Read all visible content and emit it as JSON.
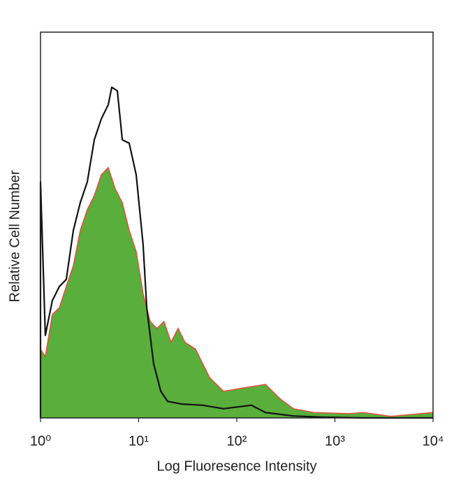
{
  "chart_data": {
    "type": "histogram-overlay",
    "x_label": "Log Fluoresence Intensity",
    "y_label": "Relative Cell Number",
    "xscale": "log",
    "xlim": [
      1,
      10000
    ],
    "xticks": [
      {
        "value": 1,
        "label": "10⁰"
      },
      {
        "value": 10,
        "label": "10¹"
      },
      {
        "value": 100,
        "label": "10²"
      },
      {
        "value": 1000,
        "label": "10³"
      },
      {
        "value": 10000,
        "label": "10⁴"
      }
    ],
    "ylim": [
      0,
      100
    ],
    "series": [
      {
        "style": "filled",
        "color": "#5aae3c",
        "edge_color": "#e0503c",
        "x": [
          1,
          1.12,
          1.32,
          1.56,
          1.83,
          2.16,
          2.54,
          3.0,
          3.53,
          4.16,
          4.9,
          5.77,
          6.81,
          8.02,
          9.44,
          11.1,
          13.1,
          15.4,
          18.1,
          21.4,
          25.2,
          29.7,
          38.0,
          52.7,
          73.3,
          119,
          196,
          272,
          377,
          613,
          1400,
          1941,
          3730,
          10000
        ],
        "values": [
          17.8,
          15.9,
          26.8,
          28.6,
          34.1,
          39.5,
          48.6,
          54.0,
          57.6,
          63.0,
          64.9,
          59.4,
          55.8,
          48.6,
          43.1,
          32.2,
          25.0,
          23.2,
          25.0,
          19.6,
          23.2,
          19.6,
          17.8,
          10.5,
          6.9,
          7.8,
          8.7,
          5.1,
          2.4,
          1.4,
          1.1,
          1.4,
          0.4,
          1.4
        ]
      },
      {
        "style": "line",
        "color": "#111111",
        "x": [
          1,
          1,
          1.12,
          1.32,
          1.56,
          1.83,
          2.16,
          2.54,
          3.0,
          3.53,
          4.16,
          4.9,
          5.32,
          6.07,
          6.81,
          8.02,
          9.44,
          11.1,
          12.1,
          14.2,
          16.8,
          19.7,
          27.4,
          44.8,
          73.3,
          141,
          196,
          377,
          726,
          1941,
          10000
        ],
        "values": [
          0,
          61.2,
          21.4,
          30.4,
          34.1,
          35.9,
          48.6,
          55.8,
          61.2,
          72.1,
          77.5,
          81.2,
          85.7,
          84.8,
          72.1,
          71.2,
          63.0,
          44.9,
          28.6,
          14.1,
          6.9,
          4.3,
          3.6,
          3.3,
          2.4,
          3.3,
          1.4,
          0.5,
          0.2,
          0,
          0
        ]
      }
    ]
  }
}
